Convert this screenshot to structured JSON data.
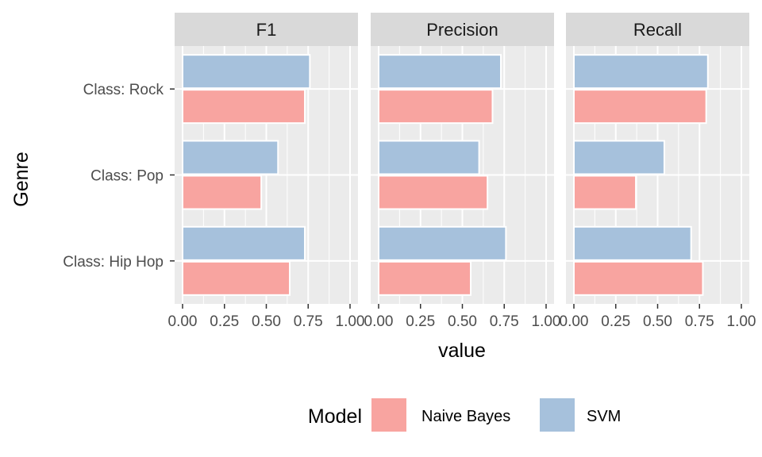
{
  "chart_data": {
    "type": "bar",
    "orientation": "horizontal",
    "facets": [
      "F1",
      "Precision",
      "Recall"
    ],
    "categories": [
      "Class: Rock",
      "Class: Pop",
      "Class: Hip Hop"
    ],
    "series": [
      {
        "name": "Naive Bayes",
        "color": "#F8A4A0",
        "values": {
          "F1": [
            0.73,
            0.47,
            0.64
          ],
          "Precision": [
            0.68,
            0.65,
            0.55
          ],
          "Recall": [
            0.79,
            0.37,
            0.77
          ]
        }
      },
      {
        "name": "SVM",
        "color": "#A6C1DC",
        "values": {
          "F1": [
            0.76,
            0.57,
            0.73
          ],
          "Precision": [
            0.73,
            0.6,
            0.76
          ],
          "Recall": [
            0.8,
            0.54,
            0.7
          ]
        }
      }
    ],
    "xlabel": "value",
    "ylabel": "Genre",
    "xlim": [
      0,
      1
    ],
    "xticks": [
      "0.00",
      "0.25",
      "0.50",
      "0.75",
      "1.00"
    ],
    "grid": true,
    "legend": {
      "title": "Model",
      "position": "bottom"
    },
    "panel_background": "#EBEBEB",
    "strip_background": "#D9D9D9"
  }
}
